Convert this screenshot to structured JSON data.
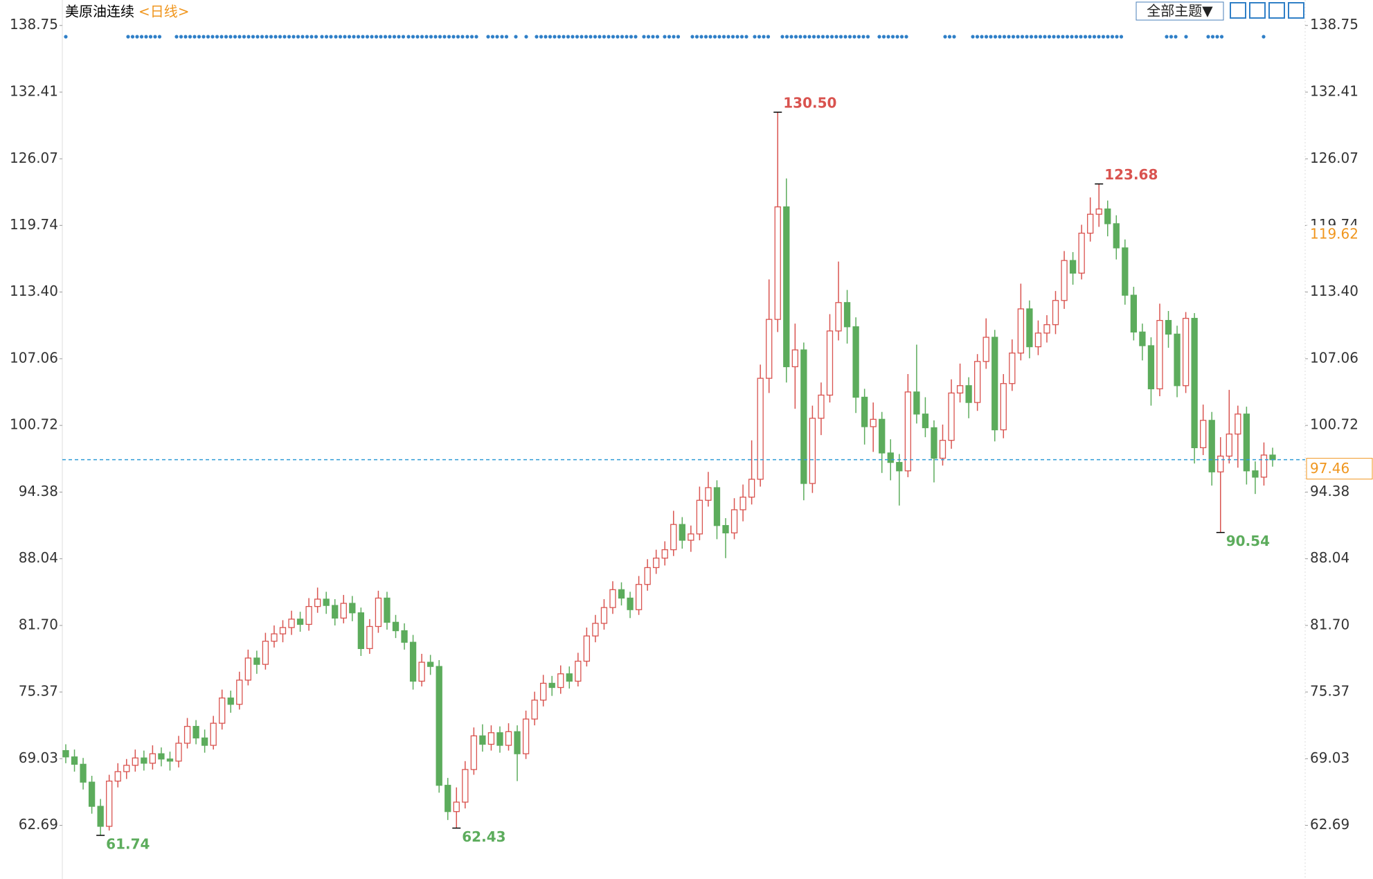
{
  "chart_data": {
    "type": "candlestick",
    "title": "美原油连续",
    "period": "<日线>",
    "theme_button": "全部主题▼",
    "up_color": "#d9534f",
    "down_color": "#5cac5c",
    "ylim": [
      57.59,
      141.17
    ],
    "yticks": [
      62.69,
      69.03,
      75.37,
      {
        "value": 81.7,
        "label": "81.70"
      },
      88.04,
      94.38,
      100.72,
      107.06,
      {
        "value": 113.4,
        "label": "113.40"
      },
      119.74,
      126.07,
      132.41,
      138.75
    ],
    "last_price": 97.46,
    "cursor_price": 119.62,
    "high_labels": [
      {
        "value": 130.5,
        "label": "130.50"
      },
      123.68
    ],
    "low_labels": [
      61.74,
      62.43,
      90.54
    ],
    "candles": [
      [
        69.8,
        70.4,
        68.6,
        69.2
      ],
      [
        69.2,
        69.9,
        67.8,
        68.5
      ],
      [
        68.5,
        69.1,
        66.1,
        66.8
      ],
      [
        66.8,
        67.4,
        63.8,
        64.5
      ],
      [
        64.5,
        65.2,
        61.74,
        62.6
      ],
      [
        62.6,
        67.5,
        62.2,
        66.9
      ],
      [
        66.9,
        68.6,
        66.3,
        67.8
      ],
      [
        67.8,
        69.0,
        67.1,
        68.4
      ],
      [
        68.4,
        69.9,
        67.8,
        69.1
      ],
      [
        69.1,
        69.8,
        67.9,
        68.6
      ],
      [
        68.6,
        70.3,
        68.0,
        69.5
      ],
      [
        69.5,
        70.1,
        68.3,
        69.0
      ],
      [
        69.0,
        69.7,
        67.9,
        68.8
      ],
      [
        68.8,
        71.2,
        68.2,
        70.5
      ],
      [
        70.5,
        72.9,
        70.0,
        72.1
      ],
      [
        72.1,
        72.7,
        70.4,
        71.0
      ],
      [
        71.0,
        71.8,
        69.6,
        70.3
      ],
      [
        70.3,
        73.1,
        69.9,
        72.4
      ],
      [
        72.4,
        75.6,
        71.8,
        74.8
      ],
      [
        74.8,
        75.5,
        73.4,
        74.2
      ],
      [
        74.2,
        77.3,
        73.7,
        76.5
      ],
      [
        76.5,
        79.4,
        76.0,
        78.6
      ],
      [
        78.6,
        79.3,
        77.1,
        78.0
      ],
      [
        78.0,
        81.0,
        77.5,
        80.2
      ],
      [
        80.2,
        81.7,
        79.6,
        80.9
      ],
      [
        80.9,
        82.2,
        80.1,
        81.5
      ],
      [
        81.5,
        83.1,
        80.8,
        82.3
      ],
      [
        82.3,
        83.0,
        81.1,
        81.8
      ],
      [
        81.8,
        84.3,
        81.2,
        83.5
      ],
      [
        83.5,
        85.3,
        82.9,
        84.2
      ],
      [
        84.2,
        84.9,
        82.8,
        83.6
      ],
      [
        83.6,
        84.2,
        81.7,
        82.4
      ],
      [
        82.4,
        84.6,
        81.9,
        83.8
      ],
      [
        83.8,
        84.5,
        82.1,
        82.9
      ],
      [
        82.9,
        83.4,
        78.8,
        79.5
      ],
      [
        79.5,
        82.3,
        79.0,
        81.6
      ],
      [
        81.6,
        85.0,
        81.0,
        84.3
      ],
      [
        84.3,
        84.9,
        81.3,
        82.0
      ],
      [
        82.0,
        82.7,
        80.5,
        81.2
      ],
      [
        81.2,
        81.9,
        79.4,
        80.1
      ],
      [
        80.1,
        80.8,
        75.6,
        76.4
      ],
      [
        76.4,
        79.0,
        75.9,
        78.2
      ],
      [
        78.2,
        78.9,
        77.0,
        77.8
      ],
      [
        77.8,
        78.4,
        65.8,
        66.5
      ],
      [
        66.5,
        67.2,
        63.2,
        64.0
      ],
      [
        64.0,
        66.3,
        62.43,
        64.9
      ],
      [
        64.9,
        68.8,
        64.3,
        68.0
      ],
      [
        68.0,
        72.0,
        67.5,
        71.2
      ],
      [
        71.2,
        72.3,
        69.7,
        70.4
      ],
      [
        70.4,
        72.2,
        69.8,
        71.5
      ],
      [
        71.5,
        72.1,
        69.6,
        70.3
      ],
      [
        70.3,
        72.4,
        69.8,
        71.6
      ],
      [
        71.6,
        72.2,
        66.9,
        69.5
      ],
      [
        69.5,
        73.6,
        69.0,
        72.8
      ],
      [
        72.8,
        75.4,
        72.2,
        74.6
      ],
      [
        74.6,
        77.0,
        74.0,
        76.2
      ],
      [
        76.2,
        76.9,
        75.0,
        75.8
      ],
      [
        75.8,
        77.9,
        75.2,
        77.1
      ],
      [
        77.1,
        77.8,
        75.7,
        76.4
      ],
      [
        76.4,
        79.1,
        75.9,
        78.3
      ],
      [
        78.3,
        81.5,
        77.8,
        80.7
      ],
      [
        80.7,
        82.7,
        80.1,
        81.9
      ],
      [
        81.9,
        84.2,
        81.3,
        83.4
      ],
      [
        83.4,
        85.9,
        82.8,
        85.1
      ],
      [
        85.1,
        85.8,
        83.6,
        84.3
      ],
      [
        84.3,
        84.9,
        82.4,
        83.2
      ],
      [
        83.2,
        86.4,
        82.7,
        85.6
      ],
      [
        85.6,
        88.0,
        85.0,
        87.2
      ],
      [
        87.2,
        88.9,
        86.6,
        88.1
      ],
      [
        88.1,
        89.7,
        87.4,
        88.9
      ],
      [
        88.9,
        92.6,
        88.3,
        91.3
      ],
      [
        91.3,
        92.0,
        89.0,
        89.8
      ],
      [
        89.8,
        91.2,
        88.7,
        90.4
      ],
      [
        90.4,
        94.9,
        89.8,
        93.6
      ],
      [
        93.6,
        96.3,
        93.0,
        94.8
      ],
      [
        94.8,
        95.5,
        89.9,
        91.2
      ],
      [
        91.2,
        91.9,
        88.1,
        90.5
      ],
      [
        90.5,
        93.8,
        89.9,
        92.7
      ],
      [
        92.7,
        95.1,
        91.6,
        93.9
      ],
      [
        93.9,
        99.3,
        93.2,
        95.6
      ],
      [
        95.6,
        106.5,
        94.9,
        105.2
      ],
      [
        105.2,
        114.6,
        103.8,
        110.8
      ],
      [
        110.8,
        130.5,
        109.6,
        121.5
      ],
      [
        121.5,
        124.2,
        104.8,
        106.3
      ],
      [
        106.3,
        110.4,
        102.3,
        107.9
      ],
      [
        107.9,
        108.6,
        93.6,
        95.2
      ],
      [
        95.2,
        102.6,
        94.3,
        101.4
      ],
      [
        101.4,
        104.8,
        99.8,
        103.6
      ],
      [
        103.6,
        111.3,
        102.9,
        109.7
      ],
      [
        109.7,
        116.3,
        108.8,
        112.4
      ],
      [
        112.4,
        113.6,
        108.5,
        110.1
      ],
      [
        110.1,
        111.0,
        101.9,
        103.4
      ],
      [
        103.4,
        104.2,
        98.9,
        100.6
      ],
      [
        100.6,
        102.9,
        98.2,
        101.3
      ],
      [
        101.3,
        102.0,
        96.2,
        98.1
      ],
      [
        98.1,
        99.4,
        95.5,
        97.2
      ],
      [
        97.2,
        98.0,
        93.1,
        96.4
      ],
      [
        96.4,
        105.6,
        95.8,
        103.9
      ],
      [
        103.9,
        108.4,
        100.9,
        101.8
      ],
      [
        101.8,
        103.4,
        99.6,
        100.5
      ],
      [
        100.5,
        101.2,
        95.3,
        97.6
      ],
      [
        97.6,
        100.8,
        96.9,
        99.3
      ],
      [
        99.3,
        105.1,
        98.5,
        103.8
      ],
      [
        103.8,
        106.6,
        102.9,
        104.5
      ],
      [
        104.5,
        105.3,
        101.4,
        102.9
      ],
      [
        102.9,
        107.5,
        102.1,
        106.8
      ],
      [
        106.8,
        110.9,
        106.1,
        109.1
      ],
      [
        109.1,
        109.8,
        99.2,
        100.3
      ],
      [
        100.3,
        105.6,
        99.5,
        104.7
      ],
      [
        104.7,
        108.9,
        104.0,
        107.6
      ],
      [
        107.6,
        114.2,
        106.9,
        111.8
      ],
      [
        111.8,
        112.6,
        107.1,
        108.2
      ],
      [
        108.2,
        110.7,
        107.4,
        109.5
      ],
      [
        109.5,
        111.2,
        108.6,
        110.3
      ],
      [
        110.3,
        113.5,
        109.4,
        112.6
      ],
      [
        112.6,
        117.3,
        111.8,
        116.4
      ],
      [
        116.4,
        117.2,
        114.1,
        115.2
      ],
      [
        115.2,
        119.8,
        114.6,
        119.0
      ],
      [
        119.0,
        122.4,
        118.2,
        120.8
      ],
      [
        120.8,
        123.68,
        119.6,
        121.3
      ],
      [
        121.3,
        122.1,
        118.7,
        119.9
      ],
      [
        119.9,
        120.7,
        116.5,
        117.6
      ],
      [
        117.6,
        118.4,
        112.2,
        113.1
      ],
      [
        113.1,
        113.9,
        108.8,
        109.6
      ],
      [
        109.6,
        110.4,
        106.9,
        108.3
      ],
      [
        108.3,
        109.1,
        102.6,
        104.2
      ],
      [
        104.2,
        112.3,
        103.5,
        110.7
      ],
      [
        110.7,
        111.6,
        108.1,
        109.4
      ],
      [
        109.4,
        110.2,
        103.4,
        104.5
      ],
      [
        104.5,
        111.5,
        103.8,
        110.9
      ],
      [
        110.9,
        111.4,
        97.1,
        98.6
      ],
      [
        98.6,
        102.7,
        97.9,
        101.2
      ],
      [
        101.2,
        102.0,
        95.0,
        96.3
      ],
      [
        96.3,
        99.6,
        90.54,
        97.8
      ],
      [
        97.8,
        104.1,
        97.1,
        99.9
      ],
      [
        99.9,
        102.6,
        96.7,
        101.8
      ],
      [
        101.8,
        102.5,
        95.1,
        96.4
      ],
      [
        96.4,
        97.3,
        94.2,
        95.8
      ],
      [
        95.8,
        99.1,
        95.0,
        97.9
      ],
      [
        97.9,
        98.6,
        96.8,
        97.46
      ]
    ]
  }
}
